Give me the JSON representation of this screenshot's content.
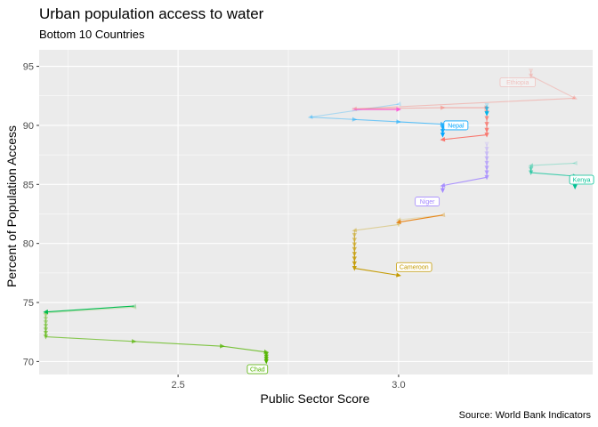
{
  "chart_data": {
    "type": "line",
    "title": "Urban population access to water",
    "subtitle": "Bottom 10 Countries",
    "xlabel": "Public Sector Score",
    "ylabel": "Percent of Population Access",
    "caption": "Source: World Bank Indicators",
    "xlim": [
      2.185,
      3.44
    ],
    "ylim": [
      68.9,
      96.4
    ],
    "x_ticks": [
      2.5,
      3.0
    ],
    "x_tick_labels": [
      "2.5",
      "3.0"
    ],
    "y_ticks": [
      70,
      75,
      80,
      85,
      90,
      95
    ],
    "y_tick_labels": [
      "70",
      "75",
      "80",
      "85",
      "90",
      "95"
    ],
    "grid": true,
    "legend": "none",
    "series": [
      {
        "name": "Chad",
        "color": "#53B400",
        "label_at": [
          2.68,
          69.35
        ],
        "points": [
          [
            2.4,
            74.6
          ],
          [
            2.2,
            74.1
          ],
          [
            2.2,
            73.9
          ],
          [
            2.2,
            73.6
          ],
          [
            2.2,
            73.3
          ],
          [
            2.2,
            73.0
          ],
          [
            2.2,
            72.7
          ],
          [
            2.2,
            72.4
          ],
          [
            2.2,
            72.1
          ],
          [
            2.4,
            71.7
          ],
          [
            2.6,
            71.3
          ],
          [
            2.7,
            70.8
          ],
          [
            2.7,
            70.6
          ],
          [
            2.7,
            70.4
          ],
          [
            2.7,
            70.2
          ],
          [
            2.7,
            70.0
          ]
        ]
      },
      {
        "name": "Cameroon",
        "color": "#C49A00",
        "label_at": [
          3.035,
          78.0
        ],
        "points": [
          [
            3.1,
            82.4
          ],
          [
            3.0,
            82.0
          ],
          [
            3.0,
            81.6
          ],
          [
            2.9,
            81.1
          ],
          [
            2.9,
            80.7
          ],
          [
            2.9,
            80.3
          ],
          [
            2.9,
            79.9
          ],
          [
            2.9,
            79.5
          ],
          [
            2.9,
            79.1
          ],
          [
            2.9,
            78.7
          ],
          [
            2.9,
            78.3
          ],
          [
            2.9,
            77.9
          ],
          [
            3.0,
            77.3
          ]
        ]
      },
      {
        "name": "Niger",
        "color": "#A58AFF",
        "label_at": [
          3.065,
          83.55
        ],
        "points": [
          [
            3.2,
            88.4
          ],
          [
            3.2,
            88.0
          ],
          [
            3.2,
            87.6
          ],
          [
            3.2,
            87.2
          ],
          [
            3.2,
            86.8
          ],
          [
            3.2,
            86.4
          ],
          [
            3.2,
            86.0
          ],
          [
            3.2,
            85.6
          ],
          [
            3.1,
            84.9
          ],
          [
            3.1,
            84.5
          ]
        ]
      },
      {
        "name": "Nepal",
        "color": "#00A6FF",
        "label_at": [
          3.13,
          90.0
        ],
        "points": [
          [
            3.0,
            91.8
          ],
          [
            2.8,
            90.7
          ],
          [
            2.9,
            90.5
          ],
          [
            3.0,
            90.3
          ],
          [
            3.1,
            90.1
          ],
          [
            3.1,
            89.8
          ],
          [
            3.1,
            89.5
          ],
          [
            3.1,
            89.2
          ]
        ]
      },
      {
        "name": "Kenya",
        "color": "#00C094",
        "label_at": [
          3.415,
          85.4
        ],
        "points": [
          [
            3.4,
            86.8
          ],
          [
            3.3,
            86.6
          ],
          [
            3.3,
            86.3
          ],
          [
            3.3,
            86.0
          ],
          [
            3.4,
            85.7
          ],
          [
            3.4,
            85.2
          ],
          [
            3.4,
            84.8
          ]
        ]
      },
      {
        "name": "Ethiopia",
        "color": "#F8766D",
        "label_at": [
          3.27,
          93.65
        ],
        "points": [
          [
            3.3,
            94.6
          ],
          [
            3.3,
            94.2
          ],
          [
            3.4,
            92.3
          ],
          [
            2.9,
            91.4
          ],
          [
            3.1,
            91.5
          ],
          [
            3.2,
            91.5
          ],
          [
            3.2,
            91.1
          ],
          [
            3.2,
            90.6
          ],
          [
            3.2,
            90.1
          ],
          [
            3.2,
            89.6
          ],
          [
            3.2,
            89.2
          ],
          [
            3.1,
            88.8
          ]
        ]
      },
      {
        "name": "",
        "color": "#00B6EB",
        "points": [
          [
            3.2,
            91.7
          ],
          [
            3.2,
            91.4
          ],
          [
            3.2,
            91.0
          ]
        ]
      },
      {
        "name": "",
        "color": "#E7861B",
        "points": [
          [
            3.1,
            82.4
          ],
          [
            3.0,
            81.8
          ]
        ]
      },
      {
        "name": "",
        "color": "#00BB4E",
        "points": [
          [
            2.4,
            74.7
          ],
          [
            2.2,
            74.2
          ]
        ]
      },
      {
        "name": "",
        "color": "#FB61D7",
        "points": [
          [
            2.9,
            91.35
          ],
          [
            3.0,
            91.35
          ]
        ]
      }
    ]
  }
}
